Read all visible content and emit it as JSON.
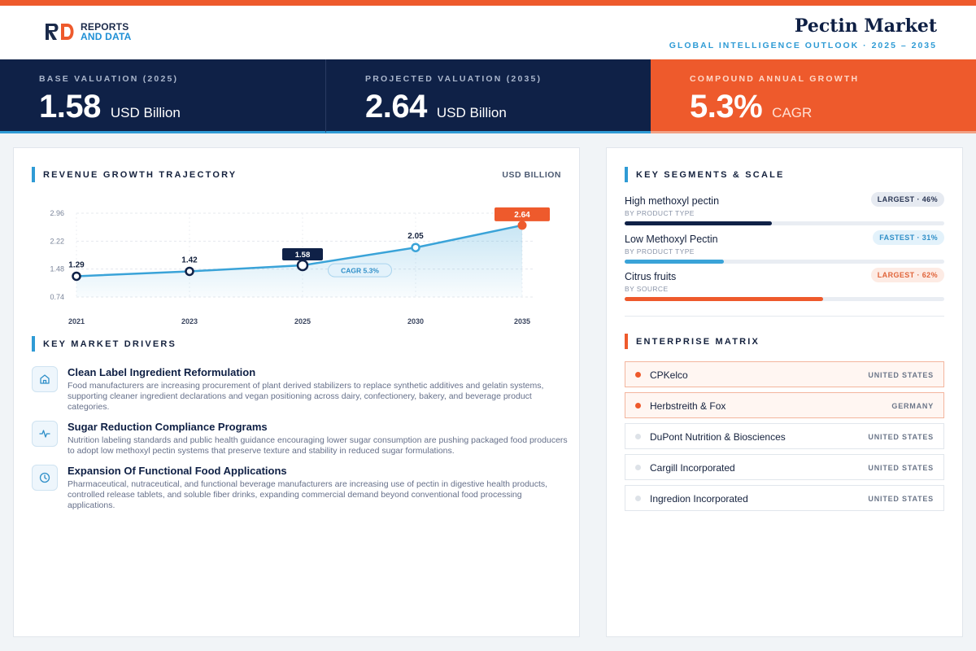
{
  "brand": {
    "line1": "REPORTS",
    "line2": "AND DATA",
    "mark": "RD"
  },
  "header": {
    "title": "Pectin Market",
    "subtitle": "GLOBAL INTELLIGENCE OUTLOOK  ·  2025 – 2035"
  },
  "kpis": [
    {
      "label": "BASE VALUATION (2025)",
      "value": "1.58",
      "unit": "USD Billion"
    },
    {
      "label": "PROJECTED VALUATION (2035)",
      "value": "2.64",
      "unit": "USD Billion"
    },
    {
      "label": "COMPOUND ANNUAL GROWTH",
      "value": "5.3%",
      "unit": "CAGR"
    }
  ],
  "trajectory": {
    "title": "REVENUE GROWTH TRAJECTORY",
    "unit_note": "USD BILLION"
  },
  "chart_data": {
    "type": "line",
    "x": [
      "2021",
      "2023",
      "2025",
      "2030",
      "2035"
    ],
    "values": [
      1.29,
      1.42,
      1.58,
      2.05,
      2.64
    ],
    "value_labels": [
      "1.29",
      "1.42",
      "1.58",
      "2.05",
      "2.64"
    ],
    "yticks": [
      "2.96",
      "2.22",
      "1.48",
      "0.74"
    ],
    "ylim": [
      0.74,
      2.96
    ],
    "annotation": "CAGR 5.3%",
    "grid": true,
    "colors": {
      "line": "#3aa3d8",
      "end": "#ee5a2c",
      "highlight": "#0f2147"
    }
  },
  "drivers": {
    "title": "KEY MARKET DRIVERS",
    "items": [
      {
        "icon": "home-icon",
        "title": "Clean Label Ingredient Reformulation",
        "text": "Food manufacturers are increasing procurement of plant derived stabilizers to replace synthetic additives and gelatin systems, supporting cleaner ingredient declarations and vegan positioning across dairy, confectionery, bakery, and beverage product categories."
      },
      {
        "icon": "pulse-icon",
        "title": "Sugar Reduction Compliance Programs",
        "text": "Nutrition labeling standards and public health guidance encouraging lower sugar consumption are pushing packaged food producers to adopt low methoxyl pectin systems that preserve texture and stability in reduced sugar formulations."
      },
      {
        "icon": "clock-icon",
        "title": "Expansion Of Functional Food Applications",
        "text": "Pharmaceutical, nutraceutical, and functional beverage manufacturers are increasing use of pectin in digestive health products, controlled release tablets, and soluble fiber drinks, expanding commercial demand beyond conventional food processing applications."
      }
    ]
  },
  "segments": {
    "title": "KEY SEGMENTS & SCALE",
    "items": [
      {
        "name": "High methoxyl pectin",
        "sub": "BY PRODUCT TYPE",
        "badge": "LARGEST · 46%",
        "share": 0.46,
        "color": "#0f2147",
        "badge_bg": "#e6eaf1",
        "badge_fg": "#2a3654"
      },
      {
        "name": "Low Methoxyl Pectin",
        "sub": "BY PRODUCT TYPE",
        "badge": "FASTEST · 31%",
        "share": 0.31,
        "color": "#3aa3d8",
        "badge_bg": "#e3f2fb",
        "badge_fg": "#2f8fc8"
      },
      {
        "name": "Citrus fruits",
        "sub": "BY SOURCE",
        "badge": "LARGEST · 62%",
        "share": 0.62,
        "color": "#ee5a2c",
        "badge_bg": "#fdebe4",
        "badge_fg": "#e0643a"
      }
    ]
  },
  "enterprise": {
    "title": "ENTERPRISE MATRIX",
    "items": [
      {
        "name": "CPKelco",
        "country": "UNITED STATES",
        "highlight": true
      },
      {
        "name": "Herbstreith & Fox",
        "country": "GERMANY",
        "highlight": true
      },
      {
        "name": "DuPont Nutrition & Biosciences",
        "country": "UNITED STATES",
        "highlight": false
      },
      {
        "name": "Cargill Incorporated",
        "country": "UNITED STATES",
        "highlight": false
      },
      {
        "name": "Ingredion Incorporated",
        "country": "UNITED STATES",
        "highlight": false
      }
    ]
  }
}
